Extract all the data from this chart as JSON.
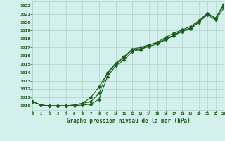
{
  "x": [
    0,
    1,
    2,
    3,
    4,
    5,
    6,
    7,
    8,
    9,
    10,
    11,
    12,
    13,
    14,
    15,
    16,
    17,
    18,
    19,
    20,
    21,
    22,
    23
  ],
  "line1": [
    1010.5,
    1010.1,
    1010.0,
    1010.0,
    1010.0,
    1010.1,
    1010.3,
    1011.0,
    1012.3,
    1013.9,
    1015.0,
    1015.8,
    1016.7,
    1016.7,
    1017.3,
    1017.5,
    1018.0,
    1018.5,
    1019.0,
    1019.3,
    1020.1,
    1021.0,
    1020.5,
    1022.2
  ],
  "line2": [
    1010.5,
    1010.1,
    1010.0,
    1010.0,
    1010.0,
    1010.1,
    1010.3,
    1010.5,
    1011.5,
    1014.0,
    1015.1,
    1015.9,
    1016.8,
    1017.0,
    1017.3,
    1017.6,
    1018.2,
    1018.7,
    1019.1,
    1019.5,
    1020.2,
    1021.1,
    1020.5,
    1022.0
  ],
  "line3": [
    1010.5,
    1010.1,
    1010.0,
    1010.0,
    1010.0,
    1010.0,
    1010.1,
    1010.2,
    1010.8,
    1013.5,
    1014.8,
    1015.5,
    1016.5,
    1016.8,
    1017.1,
    1017.4,
    1017.9,
    1018.4,
    1018.9,
    1019.2,
    1020.0,
    1020.9,
    1020.3,
    1021.7
  ],
  "ylim_min": 1009.5,
  "ylim_max": 1022.5,
  "xlim_min": 0,
  "xlim_max": 23,
  "bg_color": "#d4f0ec",
  "grid_color": "#aed4ce",
  "line_color": "#1a5c1a",
  "xlabel": "Graphe pression niveau de la mer (hPa)",
  "yticks": [
    1010,
    1011,
    1012,
    1013,
    1014,
    1015,
    1016,
    1017,
    1018,
    1019,
    1020,
    1021,
    1022
  ],
  "xticks": [
    0,
    1,
    2,
    3,
    4,
    5,
    6,
    7,
    8,
    9,
    10,
    11,
    12,
    13,
    14,
    15,
    16,
    17,
    18,
    19,
    20,
    21,
    22,
    23
  ],
  "xtick_labels": [
    "0",
    "1",
    "2",
    "3",
    "4",
    "5",
    "6",
    "7",
    "8",
    "9",
    "10",
    "11",
    "12",
    "13",
    "14",
    "15",
    "16",
    "17",
    "18",
    "19",
    "20",
    "21",
    "22",
    "23"
  ]
}
